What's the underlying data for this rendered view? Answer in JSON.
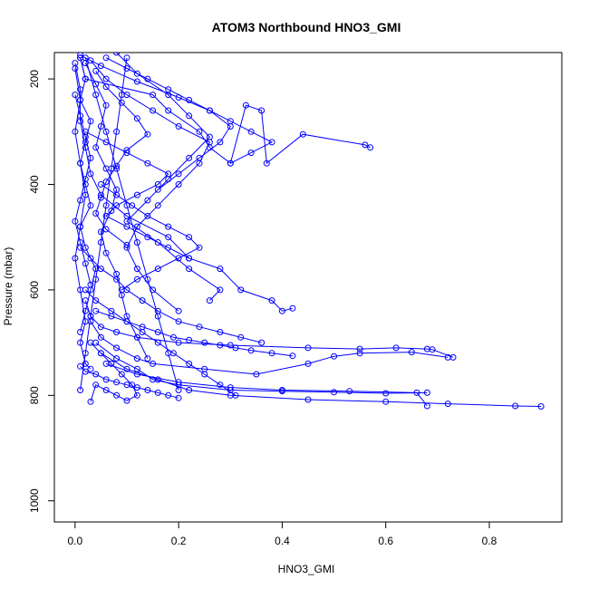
{
  "chart_data": {
    "type": "line",
    "title": "ATOM3 Northbound HNO3_GMI",
    "xlabel": "HNO3_GMI",
    "ylabel": "Pressure (mbar)",
    "xlim": [
      -0.04,
      0.94
    ],
    "ylim": [
      1040,
      150
    ],
    "y_reversed": true,
    "grid": false,
    "x_ticks": [
      0.0,
      0.2,
      0.4,
      0.6,
      0.8
    ],
    "x_tick_labels": [
      "0.0",
      "0.2",
      "0.4",
      "0.6",
      "0.8"
    ],
    "y_ticks": [
      200,
      400,
      600,
      800,
      1000
    ],
    "y_tick_labels": [
      "200",
      "400",
      "600",
      "800",
      "1000"
    ],
    "color": "#0000ff",
    "markers": "open-circle",
    "series": [
      {
        "x": [
          0.01,
          0.02,
          0.15,
          0.18,
          0.24,
          0.26,
          0.3,
          0.33,
          0.36,
          0.37,
          0.44,
          0.56,
          0.57
        ],
        "y": [
          160,
          200,
          230,
          260,
          300,
          330,
          360,
          250,
          260,
          360,
          305,
          325,
          330
        ]
      },
      {
        "x": [
          0.0,
          0.01,
          0.01,
          0.02,
          0.03,
          0.05,
          0.1,
          0.18,
          0.22,
          0.28,
          0.32,
          0.38,
          0.4,
          0.42
        ],
        "y": [
          170,
          220,
          280,
          330,
          380,
          420,
          460,
          500,
          540,
          560,
          600,
          620,
          640,
          635
        ]
      },
      {
        "x": [
          0.02,
          0.03,
          0.05,
          0.08,
          0.12,
          0.2,
          0.3,
          0.45,
          0.55,
          0.62,
          0.68,
          0.69,
          0.73
        ],
        "y": [
          620,
          650,
          670,
          680,
          690,
          700,
          705,
          710,
          712,
          710,
          712,
          713,
          728
        ]
      },
      {
        "x": [
          0.03,
          0.05,
          0.08,
          0.12,
          0.15,
          0.25,
          0.35,
          0.45,
          0.5,
          0.55,
          0.65,
          0.72
        ],
        "y": [
          660,
          690,
          710,
          730,
          740,
          750,
          760,
          740,
          726,
          720,
          718,
          728
        ]
      },
      {
        "x": [
          0.04,
          0.08,
          0.12,
          0.15,
          0.2,
          0.3,
          0.4,
          0.5,
          0.6,
          0.68
        ],
        "y": [
          700,
          730,
          750,
          770,
          780,
          790,
          792,
          794,
          796,
          795
        ]
      },
      {
        "x": [
          0.05,
          0.1,
          0.16,
          0.22,
          0.3,
          0.45,
          0.6,
          0.72,
          0.85,
          0.9
        ],
        "y": [
          720,
          750,
          770,
          790,
          800,
          808,
          812,
          816,
          820,
          821
        ]
      },
      {
        "x": [
          0.06,
          0.12,
          0.2,
          0.3,
          0.4,
          0.53,
          0.66,
          0.68
        ],
        "y": [
          740,
          760,
          775,
          785,
          790,
          792,
          795,
          820
        ]
      },
      {
        "x": [
          0.01,
          0.02,
          0.01,
          0.03,
          0.02,
          0.01,
          0.02,
          0.03,
          0.01,
          0.02,
          0.04,
          0.03,
          0.02,
          0.01
        ],
        "y": [
          160,
          200,
          240,
          280,
          320,
          360,
          400,
          440,
          480,
          520,
          560,
          600,
          640,
          680
        ]
      },
      {
        "x": [
          0.02,
          0.04,
          0.06,
          0.05,
          0.04,
          0.06,
          0.08,
          0.07,
          0.05,
          0.06,
          0.08,
          0.09,
          0.1,
          0.12,
          0.14
        ],
        "y": [
          170,
          210,
          250,
          290,
          330,
          370,
          410,
          450,
          490,
          530,
          570,
          610,
          650,
          690,
          730
        ]
      },
      {
        "x": [
          0.03,
          0.06,
          0.1,
          0.15,
          0.2,
          0.26,
          0.24,
          0.2,
          0.16,
          0.12,
          0.1,
          0.12,
          0.15,
          0.2
        ],
        "y": [
          165,
          200,
          230,
          260,
          290,
          320,
          360,
          400,
          440,
          480,
          520,
          560,
          600,
          640
        ]
      },
      {
        "x": [
          0.0,
          0.01,
          0.0,
          0.01,
          0.02,
          0.01,
          0.0,
          0.01,
          0.02,
          0.01,
          0.02,
          0.03
        ],
        "y": [
          180,
          240,
          300,
          360,
          420,
          480,
          540,
          600,
          660,
          700,
          740,
          750
        ]
      },
      {
        "x": [
          0.08,
          0.12,
          0.18,
          0.22,
          0.26,
          0.22,
          0.18,
          0.14,
          0.1,
          0.16,
          0.22,
          0.28,
          0.26
        ],
        "y": [
          150,
          190,
          230,
          270,
          310,
          350,
          390,
          430,
          470,
          510,
          560,
          600,
          620
        ]
      },
      {
        "x": [
          0.04,
          0.06,
          0.09,
          0.12,
          0.14,
          0.1,
          0.08,
          0.06,
          0.05,
          0.04,
          0.06,
          0.1
        ],
        "y": [
          185,
          215,
          245,
          275,
          305,
          335,
          365,
          395,
          425,
          455,
          485,
          515
        ]
      },
      {
        "x": [
          0.01,
          0.05,
          0.12,
          0.2,
          0.26,
          0.3,
          0.28,
          0.24,
          0.2,
          0.16
        ],
        "y": [
          155,
          175,
          205,
          235,
          260,
          290,
          320,
          350,
          380,
          410
        ]
      },
      {
        "x": [
          0.05,
          0.08,
          0.11,
          0.14,
          0.18,
          0.22,
          0.24,
          0.2,
          0.16,
          0.12,
          0.09
        ],
        "y": [
          400,
          420,
          440,
          460,
          480,
          500,
          520,
          540,
          560,
          580,
          600
        ]
      },
      {
        "x": [
          0.02,
          0.04,
          0.07,
          0.1,
          0.13,
          0.16,
          0.19,
          0.22,
          0.25,
          0.28,
          0.31
        ],
        "y": [
          600,
          620,
          640,
          660,
          680,
          700,
          720,
          740,
          760,
          780,
          800
        ]
      },
      {
        "x": [
          0.01,
          0.02,
          0.04,
          0.06,
          0.08,
          0.1,
          0.12,
          0.14,
          0.16,
          0.18,
          0.2
        ],
        "y": [
          745,
          755,
          760,
          770,
          775,
          780,
          785,
          790,
          795,
          800,
          805
        ]
      },
      {
        "x": [
          0.03,
          0.05,
          0.07,
          0.09,
          0.11,
          0.12,
          0.1,
          0.08,
          0.06,
          0.04,
          0.03
        ],
        "y": [
          700,
          720,
          740,
          760,
          780,
          800,
          810,
          800,
          790,
          780,
          812
        ]
      },
      {
        "x": [
          0.06,
          0.1,
          0.14,
          0.18,
          0.22,
          0.26,
          0.3,
          0.34,
          0.38,
          0.34,
          0.3
        ],
        "y": [
          160,
          180,
          200,
          220,
          240,
          260,
          280,
          300,
          320,
          340,
          360
        ]
      },
      {
        "x": [
          0.02,
          0.06,
          0.1,
          0.14,
          0.18,
          0.16,
          0.12,
          0.08,
          0.06,
          0.1,
          0.14,
          0.18,
          0.22
        ],
        "y": [
          300,
          320,
          340,
          360,
          380,
          400,
          420,
          440,
          460,
          480,
          500,
          520,
          540
        ]
      },
      {
        "x": [
          0.01,
          0.03,
          0.05,
          0.08,
          0.1,
          0.13,
          0.16,
          0.2,
          0.24,
          0.28,
          0.32,
          0.36
        ],
        "y": [
          520,
          540,
          560,
          580,
          600,
          620,
          640,
          660,
          670,
          680,
          690,
          700
        ]
      },
      {
        "x": [
          0.0,
          0.01,
          0.02,
          0.03,
          0.02,
          0.01,
          0.0,
          0.01,
          0.02,
          0.03
        ],
        "y": [
          230,
          270,
          310,
          350,
          390,
          430,
          470,
          510,
          550,
          590
        ]
      },
      {
        "x": [
          0.04,
          0.07,
          0.1,
          0.13,
          0.16,
          0.19,
          0.22,
          0.25,
          0.28,
          0.31,
          0.34,
          0.38,
          0.42
        ],
        "y": [
          640,
          650,
          660,
          670,
          680,
          690,
          695,
          700,
          705,
          710,
          715,
          720,
          725
        ]
      },
      {
        "x": [
          0.02,
          0.04,
          0.06,
          0.08,
          0.1,
          0.12,
          0.14,
          0.16,
          0.18,
          0.2
        ],
        "y": [
          160,
          230,
          300,
          370,
          440,
          510,
          580,
          650,
          720,
          790
        ]
      },
      {
        "x": [
          0.1,
          0.09,
          0.08,
          0.07,
          0.06,
          0.05,
          0.04,
          0.03,
          0.02,
          0.01
        ],
        "y": [
          160,
          230,
          300,
          370,
          440,
          510,
          580,
          650,
          720,
          790
        ]
      }
    ]
  }
}
